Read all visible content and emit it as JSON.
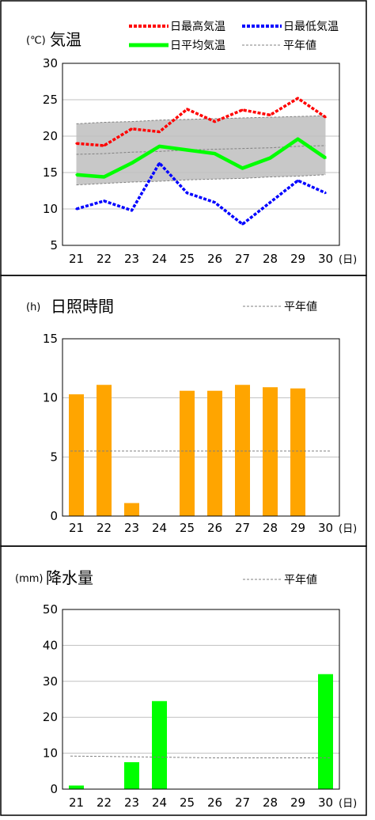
{
  "charts": {
    "temperature": {
      "unit": "(℃)",
      "title": "気温",
      "x_unit": "(日)",
      "legend": {
        "max": "日最高気温",
        "min": "日最低気温",
        "mean": "日平均気温",
        "normal": "平年値"
      }
    },
    "sunshine": {
      "unit": "(h)",
      "title": "日照時間",
      "x_unit": "(日)",
      "legend": {
        "normal": "平年値"
      }
    },
    "precipitation": {
      "unit": "(mm)",
      "title": "降水量",
      "x_unit": "(日)",
      "legend": {
        "normal": "平年値"
      }
    }
  },
  "colors": {
    "max_temp": "#ff0000",
    "min_temp": "#0000ff",
    "mean_temp": "#00ff00",
    "normal_band": "#c8c8c8",
    "normal_line": "#808080",
    "sunshine_bar": "#ffa500",
    "precip_bar": "#00ff00"
  },
  "chart_data": [
    {
      "type": "line",
      "x": [
        "21",
        "22",
        "23",
        "24",
        "25",
        "26",
        "27",
        "28",
        "29",
        "30"
      ],
      "ylim": [
        5,
        30
      ],
      "yticks": [
        "30",
        "25",
        "20",
        "15",
        "10",
        "5"
      ],
      "series": [
        {
          "name": "日最高気温",
          "values": [
            19.0,
            18.7,
            21.0,
            20.6,
            23.7,
            22.0,
            23.6,
            22.9,
            25.2,
            22.6
          ]
        },
        {
          "name": "日最低気温",
          "values": [
            10.0,
            11.1,
            9.8,
            16.3,
            12.2,
            10.9,
            7.9,
            10.9,
            13.9,
            12.2
          ]
        },
        {
          "name": "日平均気温",
          "values": [
            14.7,
            14.4,
            16.3,
            18.6,
            18.1,
            17.6,
            15.6,
            17.0,
            19.6,
            17.0
          ]
        }
      ],
      "normals": {
        "max": [
          21.7,
          21.9,
          22.0,
          22.2,
          22.3,
          22.4,
          22.5,
          22.6,
          22.7,
          22.8
        ],
        "mean": [
          17.5,
          17.6,
          17.8,
          17.9,
          18.1,
          18.2,
          18.3,
          18.4,
          18.6,
          18.7
        ],
        "min": [
          13.3,
          13.5,
          13.7,
          13.8,
          14.0,
          14.1,
          14.2,
          14.4,
          14.5,
          14.7
        ]
      },
      "grid": true
    },
    {
      "type": "bar",
      "categories": [
        "21",
        "22",
        "23",
        "24",
        "25",
        "26",
        "27",
        "28",
        "29",
        "30"
      ],
      "values": [
        10.3,
        11.1,
        1.1,
        0.0,
        10.6,
        10.6,
        11.1,
        10.9,
        10.8,
        0.0
      ],
      "normal": 5.5,
      "ylim": [
        0,
        15
      ],
      "yticks": [
        "15",
        "10",
        "5",
        "0"
      ],
      "grid": true
    },
    {
      "type": "bar",
      "categories": [
        "21",
        "22",
        "23",
        "24",
        "25",
        "26",
        "27",
        "28",
        "29",
        "30"
      ],
      "values": [
        1.0,
        0.0,
        7.5,
        24.5,
        0.0,
        0.0,
        0.0,
        0.0,
        0.0,
        32.0
      ],
      "normal": [
        9.2,
        9.1,
        9.0,
        8.9,
        8.8,
        8.7,
        8.7,
        8.7,
        8.7,
        8.7
      ],
      "ylim": [
        0,
        50
      ],
      "yticks": [
        "50",
        "40",
        "30",
        "20",
        "10",
        "0"
      ],
      "grid": true
    }
  ]
}
